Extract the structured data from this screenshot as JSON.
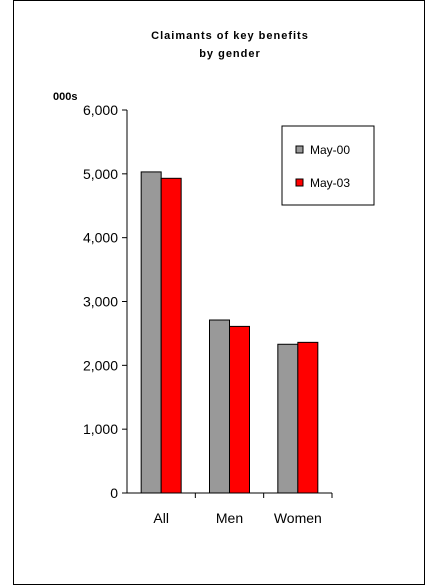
{
  "chart_data": {
    "type": "bar",
    "title_line1": "Claimants of key benefits",
    "title_line2": "by gender",
    "unit_label": "000s",
    "categories": [
      "All",
      "Men",
      "Women"
    ],
    "series": [
      {
        "name": "May-00",
        "color": "#999999",
        "values": [
          5030,
          2710,
          2330
        ]
      },
      {
        "name": "May-03",
        "color": "#ff0000",
        "values": [
          4930,
          2610,
          2360
        ]
      }
    ],
    "ylim": [
      0,
      6000
    ],
    "yticks": [
      0,
      1000,
      2000,
      3000,
      4000,
      5000,
      6000
    ],
    "ytick_labels": [
      "0",
      "1,000",
      "2,000",
      "3,000",
      "4,000",
      "5,000",
      "6,000"
    ],
    "grid": false,
    "legend_position": "top-right"
  }
}
